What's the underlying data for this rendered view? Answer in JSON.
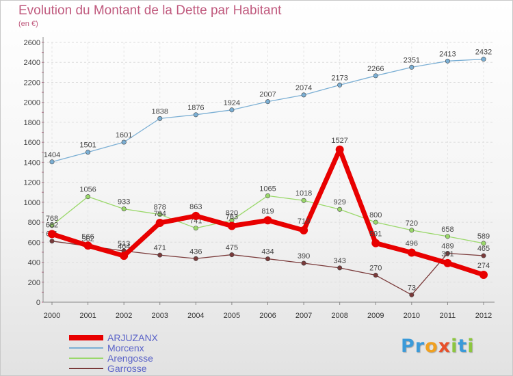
{
  "title": "Evolution du Montant de la Dette par Habitant",
  "unit": "(en €)",
  "logo": [
    {
      "ch": "P",
      "color": "#3a9ad9"
    },
    {
      "ch": "r",
      "color": "#3a9ad9"
    },
    {
      "ch": "o",
      "color": "#f0a020"
    },
    {
      "ch": "x",
      "color": "#e8502a"
    },
    {
      "ch": "i",
      "color": "#8cc63f"
    },
    {
      "ch": "t",
      "color": "#3a9ad9"
    },
    {
      "ch": "i",
      "color": "#8cc63f"
    }
  ],
  "chart_data": {
    "type": "line",
    "title": "Evolution du Montant de la Dette par Habitant",
    "ylabel": "(en €)",
    "xlabel": "",
    "ylim": [
      0,
      2600
    ],
    "yticks": [
      0,
      200,
      400,
      600,
      800,
      1000,
      1200,
      1400,
      1600,
      1800,
      2000,
      2200,
      2400,
      2600
    ],
    "categories": [
      "2000",
      "2001",
      "2002",
      "2003",
      "2004",
      "2005",
      "2006",
      "2007",
      "2008",
      "2009",
      "2010",
      "2011",
      "2012"
    ],
    "grid": true,
    "legend_position": "bottom-left",
    "series": [
      {
        "name": "Morcenx",
        "color": "#7bafd4",
        "values": [
          1404,
          1501,
          1601,
          1838,
          1876,
          1924,
          2007,
          2074,
          2173,
          2266,
          2351,
          2413,
          2432
        ]
      },
      {
        "name": "Arengosse",
        "color": "#9ad86a",
        "values": [
          768,
          1056,
          933,
          878,
          741,
          820,
          1065,
          1018,
          929,
          800,
          720,
          658,
          589
        ]
      },
      {
        "name": "Garrosse",
        "color": "#7a3a3a",
        "values": [
          611,
          562,
          513,
          471,
          436,
          475,
          434,
          390,
          343,
          270,
          73,
          489,
          465
        ]
      },
      {
        "name": "ARJUZANX",
        "color": "#e80000",
        "values": [
          682,
          566,
          464,
          794,
          863,
          763,
          819,
          719,
          1527,
          591,
          496,
          391,
          274
        ]
      }
    ],
    "legend_order": [
      "ARJUZANX",
      "Morcenx",
      "Arengosse",
      "Garrosse"
    ]
  }
}
